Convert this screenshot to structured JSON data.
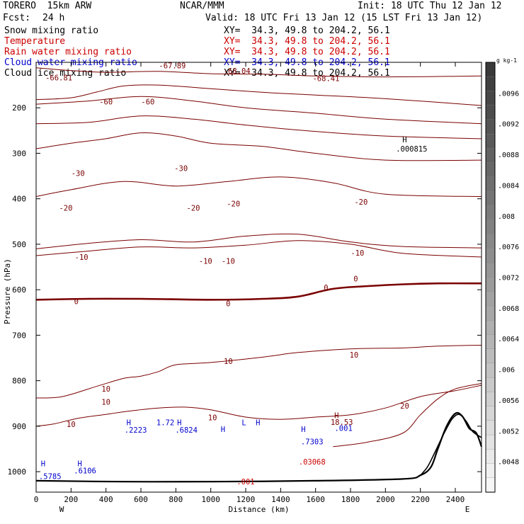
{
  "header": {
    "model": "TORERO  15km ARW",
    "center": "NCAR/MMM",
    "init": "Init: 18 UTC Thu 12 Jan 12",
    "fcst_label": "Fcst:",
    "fcst_value": "24 h",
    "valid": "Valid: 18 UTC Fri 13 Jan 12 (15 LST Fri 13 Jan 12)"
  },
  "fields": [
    {
      "name": "Snow mixing ratio",
      "color": "#000000",
      "xy": "XY=  34.3, 49.8 to 204.2, 56.1"
    },
    {
      "name": "Temperature",
      "color": "#cc0000",
      "xy": "XY=  34.3, 49.8 to 204.2, 56.1"
    },
    {
      "name": "Rain water mixing ratio",
      "color": "#cc0000",
      "xy": "XY=  34.3, 49.8 to 204.2, 56.1"
    },
    {
      "name": "Cloud water mixing ratio",
      "color": "#0000cc",
      "xy": "XY=  34.3, 49.8 to 204.2, 56.1"
    },
    {
      "name": "Cloud ice mixing ratio",
      "color": "#000000",
      "xy": "XY=  34.3, 49.8 to 204.2, 56.1"
    }
  ],
  "chart_data": {
    "type": "contour",
    "xlabel": "Distance (km)",
    "ylabel": "Pressure (hPa)",
    "x_ticks": [
      0,
      200,
      400,
      600,
      800,
      1000,
      1200,
      1400,
      1600,
      1800,
      2000,
      2200,
      2400
    ],
    "xlim": [
      0,
      2550
    ],
    "y_ticks": [
      200,
      300,
      400,
      500,
      600,
      700,
      800,
      900,
      1000
    ],
    "ylim": [
      100,
      1045
    ],
    "left_end": "W",
    "right_end": "E",
    "colorbar": {
      "unit": "g kg-1",
      "tick_labels": [
        ".0096",
        ".0092",
        ".0088",
        ".0084",
        ".008",
        ".0076",
        ".0072",
        ".0068",
        ".0064",
        ".006",
        ".0056",
        ".0052",
        ".0048"
      ],
      "range": [
        0.0044,
        0.01
      ],
      "dark_color": "#3a3a3a",
      "light_color": "#f6f6f6"
    },
    "temperature_contours": [
      {
        "level": -60,
        "color": "#7a0000",
        "points": [
          [
            0,
            112
          ],
          [
            200,
            118
          ],
          [
            400,
            122
          ],
          [
            700,
            120
          ],
          [
            1000,
            125
          ],
          [
            1300,
            126
          ],
          [
            1600,
            130
          ],
          [
            2000,
            132
          ],
          [
            2550,
            130
          ]
        ]
      },
      {
        "level": -60,
        "color": "#7a0000",
        "points": [
          [
            0,
            182
          ],
          [
            200,
            178
          ],
          [
            350,
            165
          ],
          [
            500,
            152
          ],
          [
            700,
            150
          ],
          [
            1000,
            158
          ],
          [
            1300,
            166
          ],
          [
            1600,
            172
          ],
          [
            2000,
            180
          ],
          [
            2550,
            195
          ]
        ]
      },
      {
        "level": -50,
        "color": "#7a0000",
        "points": [
          [
            0,
            192
          ],
          [
            300,
            185
          ],
          [
            600,
            175
          ],
          [
            900,
            185
          ],
          [
            1200,
            200
          ],
          [
            1600,
            212
          ],
          [
            2000,
            225
          ],
          [
            2550,
            235
          ]
        ]
      },
      {
        "level": -40,
        "color": "#7a0000",
        "points": [
          [
            0,
            235
          ],
          [
            300,
            232
          ],
          [
            600,
            218
          ],
          [
            900,
            225
          ],
          [
            1200,
            238
          ],
          [
            1600,
            252
          ],
          [
            2000,
            262
          ],
          [
            2550,
            268
          ]
        ]
      },
      {
        "level": -30,
        "color": "#7a0000",
        "points": [
          [
            0,
            290
          ],
          [
            200,
            278
          ],
          [
            400,
            268
          ],
          [
            600,
            255
          ],
          [
            800,
            262
          ],
          [
            1000,
            278
          ],
          [
            1300,
            285
          ],
          [
            1600,
            300
          ],
          [
            2000,
            315
          ],
          [
            2550,
            315
          ]
        ]
      },
      {
        "level": -20,
        "color": "#7a0000",
        "points": [
          [
            0,
            395
          ],
          [
            200,
            380
          ],
          [
            500,
            362
          ],
          [
            800,
            372
          ],
          [
            1100,
            362
          ],
          [
            1400,
            352
          ],
          [
            1700,
            365
          ],
          [
            2000,
            390
          ],
          [
            2550,
            395
          ]
        ]
      },
      {
        "level": -10,
        "color": "#7a0000",
        "points": [
          [
            0,
            510
          ],
          [
            300,
            498
          ],
          [
            600,
            490
          ],
          [
            900,
            495
          ],
          [
            1200,
            482
          ],
          [
            1500,
            478
          ],
          [
            1800,
            495
          ],
          [
            2100,
            505
          ],
          [
            2550,
            508
          ]
        ]
      },
      {
        "level": -10,
        "color": "#7a0000",
        "points": [
          [
            0,
            525
          ],
          [
            300,
            515
          ],
          [
            600,
            506
          ],
          [
            900,
            508
          ],
          [
            1200,
            502
          ],
          [
            1500,
            492
          ],
          [
            1800,
            500
          ],
          [
            2100,
            520
          ],
          [
            2550,
            528
          ]
        ]
      },
      {
        "level": 0,
        "color": "#7a0000",
        "bold": true,
        "points": [
          [
            0,
            622
          ],
          [
            300,
            620
          ],
          [
            600,
            620
          ],
          [
            1000,
            622
          ],
          [
            1300,
            620
          ],
          [
            1500,
            615
          ],
          [
            1700,
            598
          ],
          [
            1900,
            592
          ],
          [
            2100,
            588
          ],
          [
            2300,
            586
          ],
          [
            2550,
            586
          ]
        ]
      },
      {
        "level": 10,
        "color": "#7a0000",
        "points": [
          [
            0,
            838
          ],
          [
            150,
            835
          ],
          [
            350,
            812
          ],
          [
            500,
            795
          ],
          [
            600,
            790
          ],
          [
            700,
            780
          ],
          [
            800,
            765
          ],
          [
            1000,
            760
          ],
          [
            1300,
            748
          ],
          [
            1500,
            738
          ],
          [
            1800,
            730
          ],
          [
            2100,
            728
          ],
          [
            2300,
            724
          ],
          [
            2550,
            722
          ]
        ]
      },
      {
        "level": 10,
        "color": "#7a0000",
        "points": [
          [
            0,
            900
          ],
          [
            100,
            895
          ],
          [
            250,
            882
          ],
          [
            400,
            874
          ],
          [
            550,
            866
          ],
          [
            700,
            860
          ],
          [
            850,
            858
          ],
          [
            1000,
            864
          ],
          [
            1200,
            880
          ],
          [
            1400,
            885
          ],
          [
            1600,
            880
          ],
          [
            1800,
            875
          ],
          [
            2000,
            860
          ],
          [
            2200,
            835
          ],
          [
            2400,
            822
          ],
          [
            2550,
            810
          ]
        ]
      },
      {
        "level": 20,
        "color": "#7a0000",
        "points": [
          [
            1700,
            945
          ],
          [
            1900,
            935
          ],
          [
            2100,
            915
          ],
          [
            2200,
            875
          ],
          [
            2300,
            840
          ],
          [
            2400,
            818
          ],
          [
            2550,
            806
          ]
        ]
      }
    ],
    "labels": [
      {
        "text": "-67.89",
        "x": 780,
        "y": 113,
        "color": "#7a0000"
      },
      {
        "text": "-68.04",
        "x": 1150,
        "y": 125,
        "color": "#7a0000"
      },
      {
        "text": "-66.81",
        "x": 130,
        "y": 140,
        "color": "#7a0000"
      },
      {
        "text": "-68.41",
        "x": 1660,
        "y": 141,
        "color": "#7a0000"
      },
      {
        "text": "-60",
        "x": 400,
        "y": 193,
        "color": "#7a0000"
      },
      {
        "text": "-60",
        "x": 640,
        "y": 193,
        "color": "#7a0000"
      },
      {
        "text": "-30",
        "x": 240,
        "y": 350,
        "color": "#7a0000"
      },
      {
        "text": "-30",
        "x": 830,
        "y": 339,
        "color": "#7a0000"
      },
      {
        "text": "-20",
        "x": 170,
        "y": 426,
        "color": "#7a0000"
      },
      {
        "text": "-20",
        "x": 900,
        "y": 426,
        "color": "#7a0000"
      },
      {
        "text": "-20",
        "x": 1130,
        "y": 417,
        "color": "#7a0000"
      },
      {
        "text": "-20",
        "x": 1860,
        "y": 413,
        "color": "#7a0000"
      },
      {
        "text": "-10",
        "x": 260,
        "y": 534,
        "color": "#7a0000"
      },
      {
        "text": "-10",
        "x": 970,
        "y": 543,
        "color": "#7a0000"
      },
      {
        "text": "-10",
        "x": 1100,
        "y": 543,
        "color": "#7a0000"
      },
      {
        "text": "-10",
        "x": 1840,
        "y": 525,
        "color": "#7a0000"
      },
      {
        "text": "0",
        "x": 230,
        "y": 632,
        "color": "#7a0000"
      },
      {
        "text": "0",
        "x": 1100,
        "y": 636,
        "color": "#7a0000"
      },
      {
        "text": "0",
        "x": 1660,
        "y": 601,
        "color": "#7a0000"
      },
      {
        "text": "0",
        "x": 1830,
        "y": 582,
        "color": "#7a0000"
      },
      {
        "text": "10",
        "x": 1100,
        "y": 763,
        "color": "#7a0000"
      },
      {
        "text": "10",
        "x": 1820,
        "y": 749,
        "color": "#7a0000"
      },
      {
        "text": "10",
        "x": 400,
        "y": 824,
        "color": "#7a0000"
      },
      {
        "text": "10",
        "x": 400,
        "y": 853,
        "color": "#7a0000"
      },
      {
        "text": "10",
        "x": 200,
        "y": 902,
        "color": "#7a0000"
      },
      {
        "text": "10",
        "x": 1010,
        "y": 887,
        "color": "#7a0000"
      },
      {
        "text": "20",
        "x": 2110,
        "y": 861,
        "color": "#7a0000"
      },
      {
        "text": "H",
        "x": 2110,
        "y": 276,
        "color": "#000000"
      },
      {
        "text": ".000815",
        "x": 2150,
        "y": 296,
        "color": "#000000"
      },
      {
        "text": "H",
        "x": 1720,
        "y": 882,
        "color": "#7a0000"
      },
      {
        "text": "18.53",
        "x": 1750,
        "y": 897,
        "color": "#7a0000"
      },
      {
        "text": "H",
        "x": 530,
        "y": 898,
        "color": "#0000cc"
      },
      {
        "text": ".2223",
        "x": 570,
        "y": 914,
        "color": "#0000cc"
      },
      {
        "text": "H",
        "x": 820,
        "y": 898,
        "color": "#0000cc"
      },
      {
        "text": "1.72",
        "x": 740,
        "y": 898,
        "color": "#0000cc"
      },
      {
        "text": ".6824",
        "x": 860,
        "y": 914,
        "color": "#0000cc"
      },
      {
        "text": "H",
        "x": 1070,
        "y": 913,
        "color": "#0000cc"
      },
      {
        "text": "L",
        "x": 1190,
        "y": 898,
        "color": "#0000cc"
      },
      {
        "text": "H",
        "x": 1270,
        "y": 898,
        "color": "#0000cc"
      },
      {
        "text": "H",
        "x": 1530,
        "y": 913,
        "color": "#0000cc"
      },
      {
        "text": ".7303",
        "x": 1580,
        "y": 940,
        "color": "#0000cc"
      },
      {
        "text": ".03068",
        "x": 1580,
        "y": 984,
        "color": "#cc0000"
      },
      {
        "text": ".001",
        "x": 1760,
        "y": 910,
        "color": "#0000cc"
      },
      {
        "text": ".001",
        "x": 1200,
        "y": 1028,
        "color": "#cc0000"
      },
      {
        "text": "H",
        "x": 40,
        "y": 988,
        "color": "#0000cc"
      },
      {
        "text": ".5785",
        "x": 80,
        "y": 1016,
        "color": "#0000cc"
      },
      {
        "text": "H",
        "x": 250,
        "y": 988,
        "color": "#0000cc"
      },
      {
        "text": ".6106",
        "x": 280,
        "y": 1004,
        "color": "#0000cc"
      }
    ],
    "terrain": [
      [
        0,
        1020
      ],
      [
        500,
        1022
      ],
      [
        1000,
        1022
      ],
      [
        1600,
        1020
      ],
      [
        2100,
        1016
      ],
      [
        2200,
        1008
      ],
      [
        2260,
        990
      ],
      [
        2300,
        950
      ],
      [
        2350,
        900
      ],
      [
        2400,
        872
      ],
      [
        2440,
        878
      ],
      [
        2480,
        905
      ],
      [
        2520,
        915
      ],
      [
        2550,
        945
      ]
    ],
    "terrain_left": [
      [
        2200,
        1008
      ],
      [
        2240,
        990
      ],
      [
        2280,
        960
      ],
      [
        2330,
        920
      ],
      [
        2380,
        885
      ],
      [
        2420,
        874
      ],
      [
        2460,
        888
      ],
      [
        2500,
        912
      ],
      [
        2550,
        925
      ]
    ]
  }
}
